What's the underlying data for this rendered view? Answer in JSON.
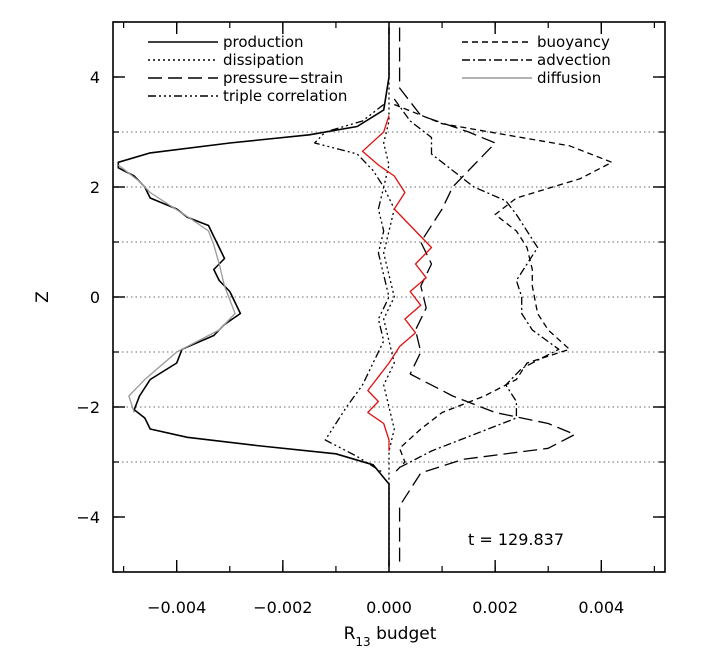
{
  "chart_data": {
    "type": "line",
    "xlabel_main": "R",
    "xlabel_sub": "13",
    "xlabel_rest": " budget",
    "ylabel": "Z",
    "xlim": [
      -0.0052,
      0.0052
    ],
    "ylim": [
      -5,
      5
    ],
    "xticks": [
      {
        "v": -0.004,
        "label": "−0.004"
      },
      {
        "v": -0.002,
        "label": "−0.002"
      },
      {
        "v": 0.0,
        "label": "0.000"
      },
      {
        "v": 0.002,
        "label": "0.002"
      },
      {
        "v": 0.004,
        "label": "0.004"
      }
    ],
    "yticks": [
      {
        "v": -4,
        "label": "−4"
      },
      {
        "v": -2,
        "label": "−2"
      },
      {
        "v": 0,
        "label": "0"
      },
      {
        "v": 2,
        "label": "2"
      },
      {
        "v": 4,
        "label": "4"
      }
    ],
    "hlines": [
      3,
      2,
      1,
      0,
      -1,
      -2,
      -3
    ],
    "annotation": "t  =  129.837",
    "legend": [
      {
        "label": "production",
        "key": "production",
        "column": "left"
      },
      {
        "label": "dissipation",
        "key": "dissipation",
        "column": "left"
      },
      {
        "label": "pressure−strain",
        "key": "pressure_strain",
        "column": "left"
      },
      {
        "label": "triple correlation",
        "key": "triple_correlation",
        "column": "left"
      },
      {
        "label": "buoyancy",
        "key": "buoyancy",
        "column": "right"
      },
      {
        "label": "advection",
        "key": "advection",
        "column": "right"
      },
      {
        "label": "diffusion",
        "key": "diffusion",
        "column": "right"
      }
    ],
    "series": [
      {
        "key": "production",
        "color": "#000000",
        "dash": "",
        "points": [
          [
            0,
            4.9
          ],
          [
            0,
            4.0
          ],
          [
            -0.0001,
            3.4
          ],
          [
            -0.0006,
            3.1
          ],
          [
            -0.0015,
            2.95
          ],
          [
            -0.003,
            2.8
          ],
          [
            -0.0045,
            2.62
          ],
          [
            -0.0051,
            2.45
          ],
          [
            -0.0051,
            2.35
          ],
          [
            -0.0048,
            2.2
          ],
          [
            -0.0046,
            2.0
          ],
          [
            -0.0045,
            1.8
          ],
          [
            -0.004,
            1.6
          ],
          [
            -0.0038,
            1.45
          ],
          [
            -0.0034,
            1.3
          ],
          [
            -0.0033,
            1.1
          ],
          [
            -0.0032,
            0.9
          ],
          [
            -0.0031,
            0.7
          ],
          [
            -0.0033,
            0.5
          ],
          [
            -0.0032,
            0.3
          ],
          [
            -0.003,
            0.1
          ],
          [
            -0.0028,
            -0.3
          ],
          [
            -0.0031,
            -0.5
          ],
          [
            -0.0033,
            -0.7
          ],
          [
            -0.0039,
            -0.95
          ],
          [
            -0.004,
            -1.2
          ],
          [
            -0.0045,
            -1.5
          ],
          [
            -0.0047,
            -1.8
          ],
          [
            -0.0048,
            -2.05
          ],
          [
            -0.0046,
            -2.2
          ],
          [
            -0.0045,
            -2.4
          ],
          [
            -0.0038,
            -2.55
          ],
          [
            -0.0025,
            -2.7
          ],
          [
            -0.001,
            -2.85
          ],
          [
            -0.0003,
            -3.05
          ],
          [
            0,
            -3.4
          ],
          [
            0,
            -4.9
          ]
        ]
      },
      {
        "key": "diffusion",
        "color": "#9a9a9a",
        "dash": "",
        "points": [
          [
            -0.0051,
            2.4
          ],
          [
            -0.0047,
            2.1
          ],
          [
            -0.0045,
            1.9
          ],
          [
            -0.0041,
            1.65
          ],
          [
            -0.0037,
            1.4
          ],
          [
            -0.0034,
            1.2
          ],
          [
            -0.0033,
            0.95
          ],
          [
            -0.0032,
            0.6
          ],
          [
            -0.0031,
            0.2
          ],
          [
            -0.0029,
            -0.3
          ],
          [
            -0.0032,
            -0.6
          ],
          [
            -0.004,
            -1.0
          ],
          [
            -0.0046,
            -1.5
          ],
          [
            -0.0049,
            -1.8
          ],
          [
            -0.0048,
            -2.1
          ]
        ]
      },
      {
        "key": "dissipation",
        "color": "#000000",
        "dash": "2 3",
        "points": [
          [
            0,
            4.9
          ],
          [
            0,
            3.2
          ],
          [
            -0.0001,
            2.8
          ],
          [
            0.0,
            2.4
          ],
          [
            -0.0001,
            2.0
          ],
          [
            0.0001,
            1.6
          ],
          [
            0.0,
            1.2
          ],
          [
            -0.0001,
            0.8
          ],
          [
            0.0,
            0.4
          ],
          [
            0.0001,
            0.0
          ],
          [
            -0.0001,
            -0.4
          ],
          [
            0.0,
            -0.8
          ],
          [
            0.0001,
            -1.2
          ],
          [
            -0.0001,
            -1.6
          ],
          [
            0.0,
            -2.0
          ],
          [
            0.0001,
            -2.4
          ],
          [
            0.0,
            -2.8
          ],
          [
            0,
            -3.2
          ],
          [
            0,
            -4.9
          ]
        ]
      },
      {
        "key": "pressure_strain",
        "color": "#000000",
        "dash": "14 6",
        "points": [
          [
            0.0002,
            4.9
          ],
          [
            0.0002,
            3.8
          ],
          [
            0.0006,
            3.3
          ],
          [
            0.0015,
            3.0
          ],
          [
            0.002,
            2.8
          ],
          [
            0.0016,
            2.4
          ],
          [
            0.0012,
            2.0
          ],
          [
            0.001,
            1.6
          ],
          [
            0.0008,
            1.3
          ],
          [
            0.0006,
            1.0
          ],
          [
            0.0008,
            0.6
          ],
          [
            0.0006,
            0.2
          ],
          [
            0.0007,
            -0.2
          ],
          [
            0.0005,
            -0.6
          ],
          [
            0.0006,
            -1.0
          ],
          [
            0.0004,
            -1.4
          ],
          [
            0.0012,
            -1.8
          ],
          [
            0.002,
            -2.1
          ],
          [
            0.003,
            -2.3
          ],
          [
            0.0035,
            -2.5
          ],
          [
            0.003,
            -2.75
          ],
          [
            0.0014,
            -2.95
          ],
          [
            0.0006,
            -3.2
          ],
          [
            0.0002,
            -3.8
          ],
          [
            0.0002,
            -4.9
          ]
        ]
      },
      {
        "key": "buoyancy",
        "color": "#000000",
        "dash": "6 4",
        "points": [
          [
            0.0001,
            3.5
          ],
          [
            0.001,
            3.15
          ],
          [
            0.0022,
            2.95
          ],
          [
            0.0034,
            2.75
          ],
          [
            0.0042,
            2.45
          ],
          [
            0.0036,
            2.15
          ],
          [
            0.0024,
            1.8
          ],
          [
            0.002,
            1.5
          ],
          [
            0.0024,
            1.2
          ],
          [
            0.0026,
            0.9
          ],
          [
            0.0027,
            0.5
          ],
          [
            0.0027,
            0.2
          ],
          [
            0.0028,
            -0.3
          ],
          [
            0.003,
            -0.6
          ],
          [
            0.0034,
            -0.95
          ],
          [
            0.0026,
            -1.2
          ],
          [
            0.0024,
            -1.5
          ],
          [
            0.0018,
            -1.8
          ],
          [
            0.001,
            -2.1
          ],
          [
            0.0006,
            -2.4
          ],
          [
            0.0002,
            -2.75
          ],
          [
            0.0003,
            -3.0
          ],
          [
            0.0001,
            -3.2
          ]
        ]
      },
      {
        "key": "advection",
        "color": "#000000",
        "dash": "8 3 2 3",
        "points": [
          [
            0.0001,
            3.6
          ],
          [
            0.0004,
            3.2
          ],
          [
            0.0008,
            2.9
          ],
          [
            0.0008,
            2.6
          ],
          [
            0.0012,
            2.3
          ],
          [
            0.0016,
            2.0
          ],
          [
            0.0022,
            1.75
          ],
          [
            0.0024,
            1.5
          ],
          [
            0.0026,
            1.2
          ],
          [
            0.0028,
            0.9
          ],
          [
            0.0026,
            0.6
          ],
          [
            0.0024,
            0.3
          ],
          [
            0.0025,
            0.0
          ],
          [
            0.0025,
            -0.3
          ],
          [
            0.0027,
            -0.6
          ],
          [
            0.0032,
            -0.95
          ],
          [
            0.0025,
            -1.3
          ],
          [
            0.0022,
            -1.6
          ],
          [
            0.0024,
            -1.9
          ],
          [
            0.0024,
            -2.2
          ],
          [
            0.0016,
            -2.5
          ],
          [
            0.0008,
            -2.8
          ],
          [
            0.0002,
            -3.1
          ]
        ]
      },
      {
        "key": "triple_correlation",
        "color": "#000000",
        "dash": "8 3 2 3 2 3 2 3",
        "points": [
          [
            -0.0001,
            3.5
          ],
          [
            -0.0005,
            3.2
          ],
          [
            -0.0012,
            3.0
          ],
          [
            -0.0014,
            2.8
          ],
          [
            -0.0006,
            2.6
          ],
          [
            -0.0003,
            2.3
          ],
          [
            -0.0001,
            2.0
          ],
          [
            -0.0002,
            1.6
          ],
          [
            -0.0001,
            1.2
          ],
          [
            -0.0002,
            0.8
          ],
          [
            -0.0001,
            0.4
          ],
          [
            0.0,
            0.0
          ],
          [
            -0.0002,
            -0.4
          ],
          [
            -0.0001,
            -0.8
          ],
          [
            -0.0003,
            -1.2
          ],
          [
            -0.0005,
            -1.6
          ],
          [
            -0.0008,
            -2.0
          ],
          [
            -0.001,
            -2.3
          ],
          [
            -0.0012,
            -2.6
          ],
          [
            -0.0006,
            -2.9
          ],
          [
            -0.0001,
            -3.2
          ]
        ]
      },
      {
        "key": "total",
        "color": "#e01010",
        "dash": "",
        "points": [
          [
            0.0,
            3.3
          ],
          [
            -0.0001,
            3.0
          ],
          [
            -0.0005,
            2.65
          ],
          [
            -0.0002,
            2.4
          ],
          [
            0.0001,
            2.2
          ],
          [
            0.0003,
            1.9
          ],
          [
            0.0001,
            1.6
          ],
          [
            0.0004,
            1.3
          ],
          [
            0.0006,
            1.1
          ],
          [
            0.0008,
            0.9
          ],
          [
            0.0005,
            0.6
          ],
          [
            0.0007,
            0.35
          ],
          [
            0.0004,
            0.1
          ],
          [
            0.0006,
            -0.15
          ],
          [
            0.0003,
            -0.4
          ],
          [
            0.0005,
            -0.65
          ],
          [
            0.0002,
            -0.9
          ],
          [
            0.0,
            -1.2
          ],
          [
            -0.0002,
            -1.45
          ],
          [
            -0.0004,
            -1.7
          ],
          [
            -0.0002,
            -1.9
          ],
          [
            -0.0004,
            -2.1
          ],
          [
            -0.0001,
            -2.3
          ],
          [
            0.0,
            -2.6
          ],
          [
            0.0,
            -2.8
          ]
        ]
      }
    ]
  }
}
